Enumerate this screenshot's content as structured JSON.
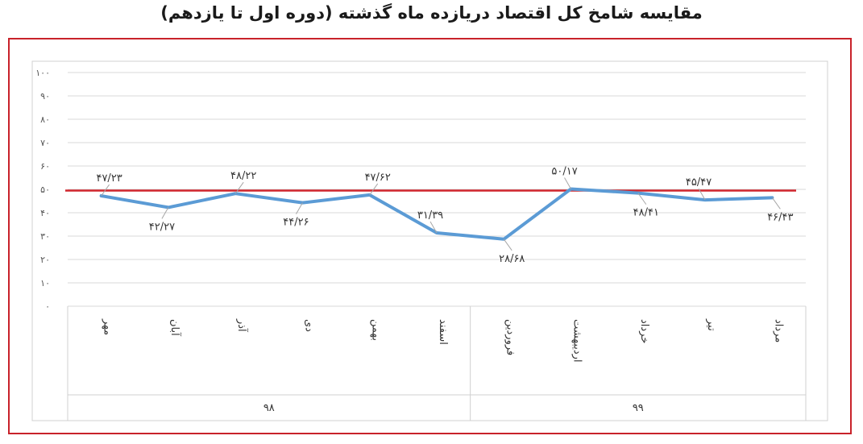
{
  "title": "مقایسه شامخ کل اقتصاد دریازده ماه گذشته (دوره اول تا یازدهم)",
  "colors": {
    "frame": "#c8222a",
    "series": "#5b9bd5",
    "threshold": "#d0262d",
    "grid": "#d9d9d9"
  },
  "chart_data": {
    "type": "line",
    "categories": [
      "مهر",
      "آبان",
      "آذر",
      "دی",
      "بهمن",
      "اسفند",
      "فروردین",
      "اردیبهشت",
      "خرداد",
      "تیر",
      "مرداد"
    ],
    "category_groups": [
      {
        "label": "۹۸",
        "span": 6
      },
      {
        "label": "۹۹",
        "span": 5
      }
    ],
    "series": [
      {
        "values": [
          47.23,
          42.27,
          48.22,
          44.26,
          47.62,
          31.39,
          28.68,
          50.17,
          48.41,
          45.47,
          46.43
        ],
        "labels": [
          "۴۷/۲۳",
          "۴۲/۲۷",
          "۴۸/۲۲",
          "۴۴/۲۶",
          "۴۷/۶۲",
          "۳۱/۳۹",
          "۲۸/۶۸",
          "۵۰/۱۷",
          "۴۸/۴۱",
          "۴۵/۴۷",
          "۴۶/۴۳"
        ]
      }
    ],
    "reference_line": 49.5,
    "ylim": [
      0,
      100
    ],
    "yticks": [
      "۰",
      "۱۰",
      "۲۰",
      "۳۰",
      "۴۰",
      "۵۰",
      "۶۰",
      "۷۰",
      "۸۰",
      "۹۰",
      "۱۰۰"
    ],
    "grid": true,
    "legend": "none"
  }
}
